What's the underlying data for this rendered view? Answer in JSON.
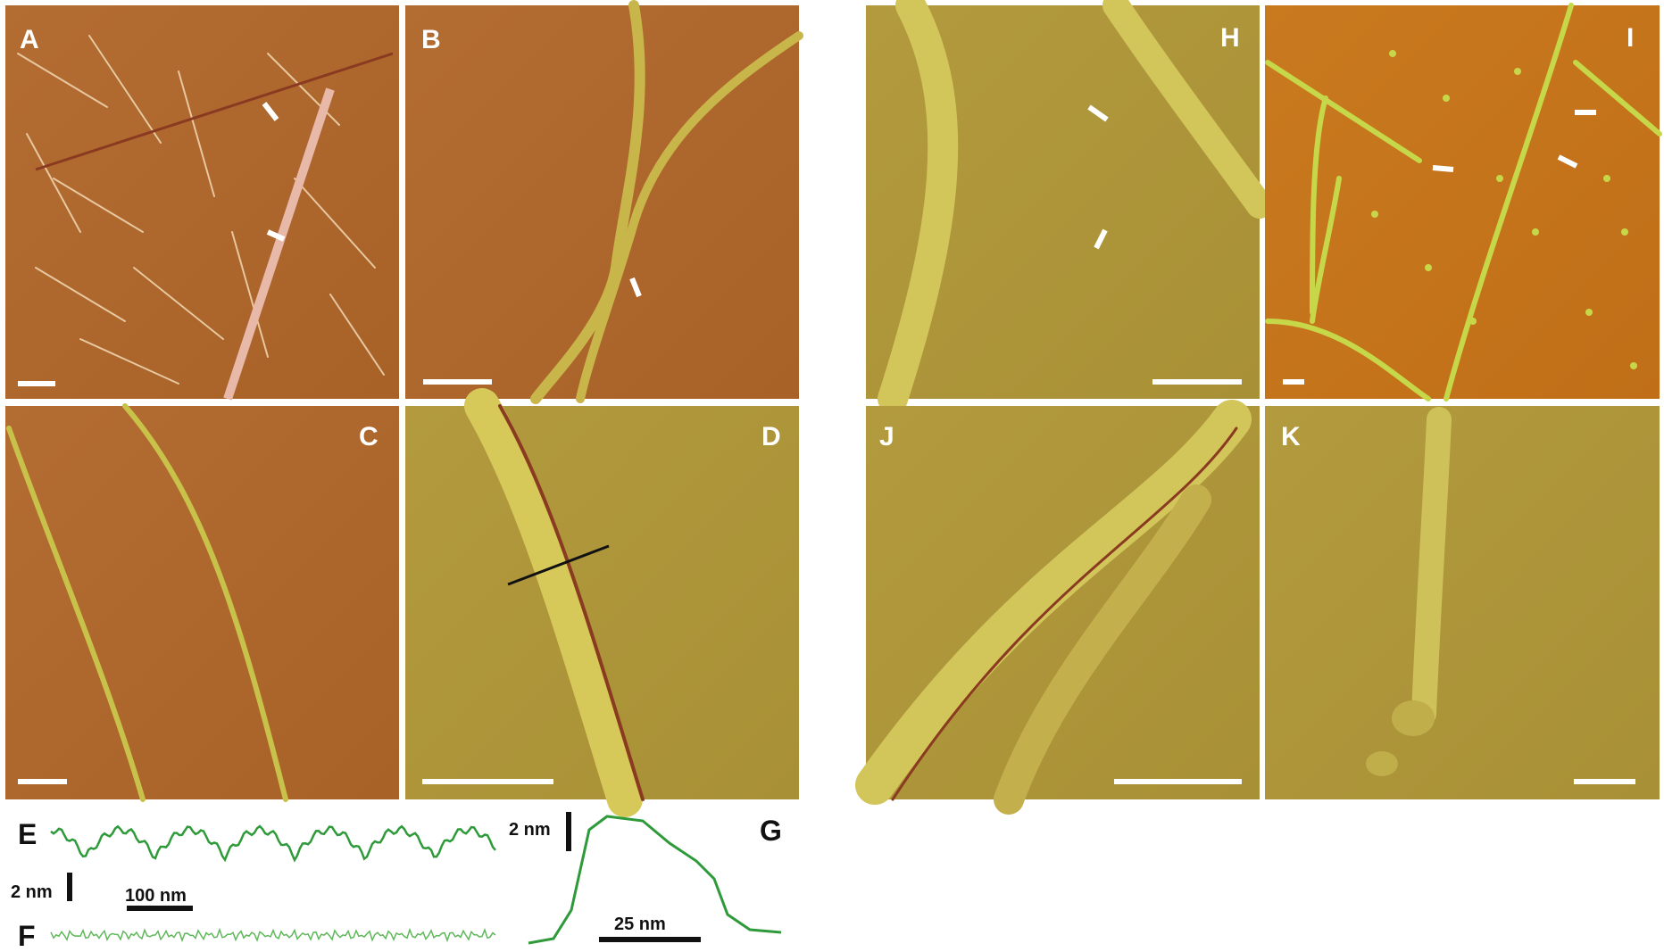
{
  "panel_labels": [
    "A",
    "B",
    "C",
    "D",
    "H",
    "I",
    "J",
    "K"
  ],
  "profile_labels": [
    "E",
    "F",
    "G"
  ],
  "scale_labels": [
    "2 nm",
    "100 nm",
    "2 nm",
    "25 nm"
  ]
}
